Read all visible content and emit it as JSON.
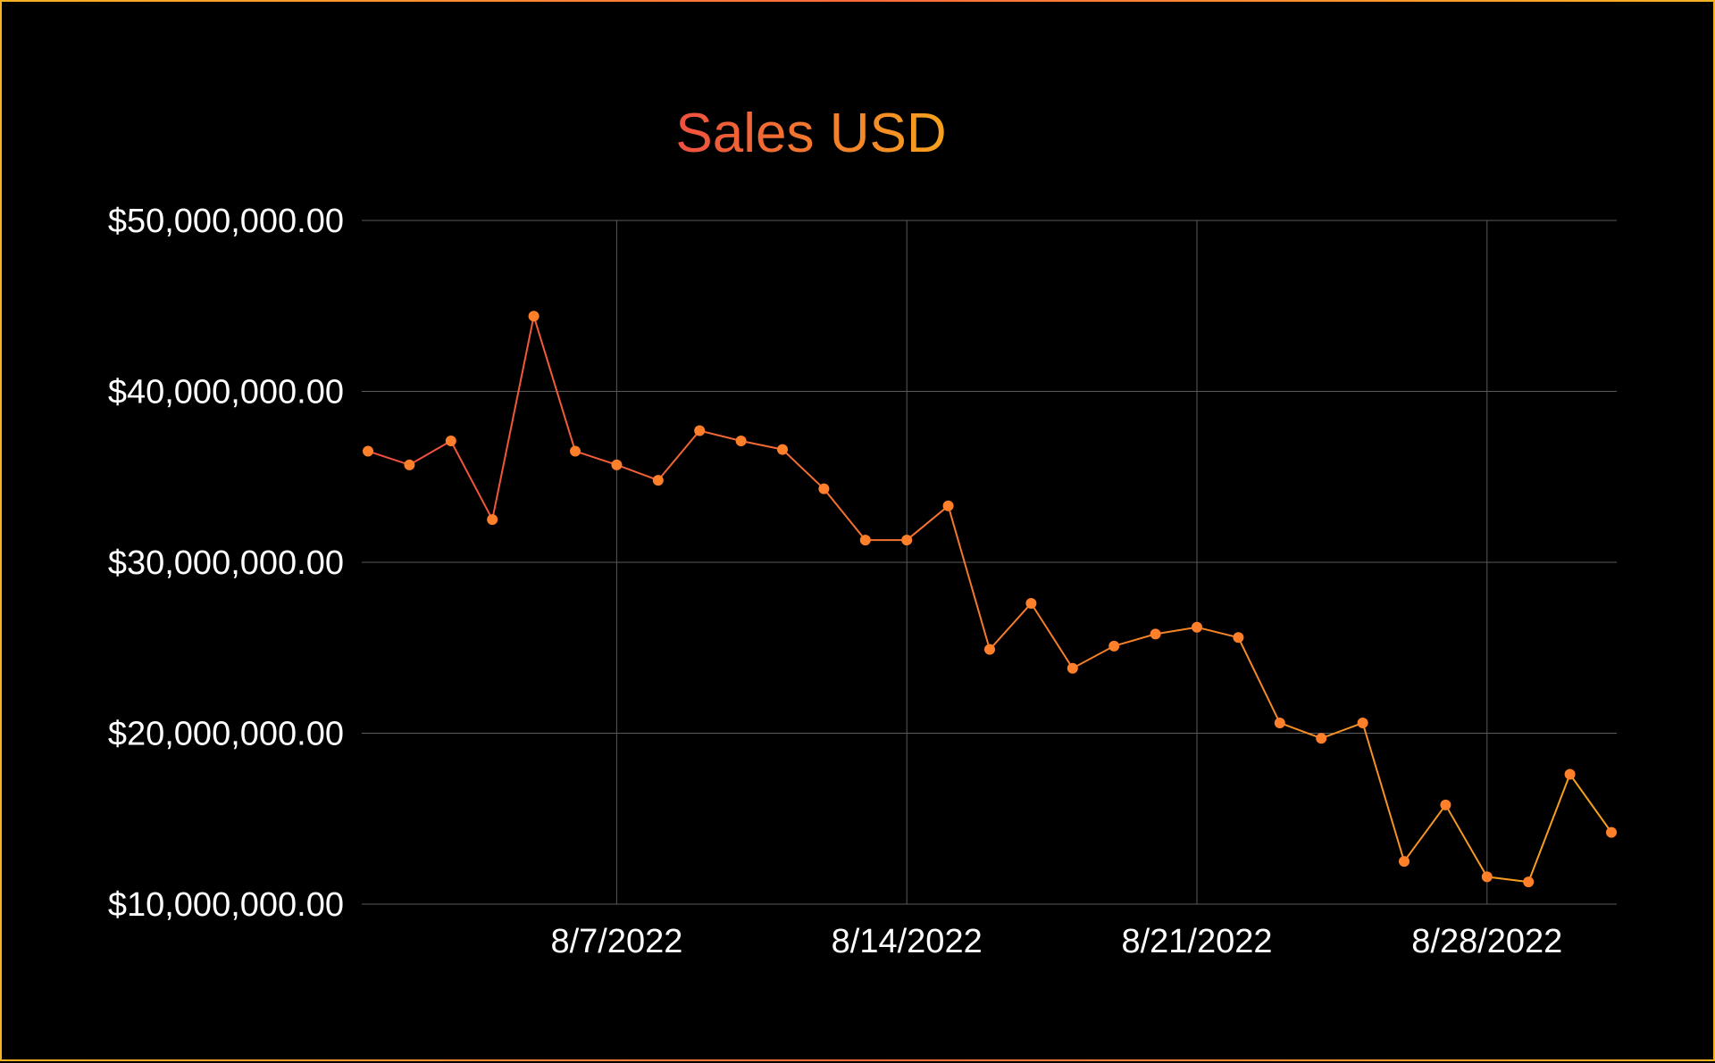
{
  "chart_data": {
    "type": "line",
    "title": "Sales USD",
    "xlabel": "",
    "ylabel": "",
    "ylim": [
      10000000,
      50000000
    ],
    "y_ticks": [
      "$50,000,000.00",
      "$40,000,000.00",
      "$30,000,000.00",
      "$20,000,000.00",
      "$10,000,000.00"
    ],
    "x_ticks": [
      "8/7/2022",
      "8/14/2022",
      "8/21/2022",
      "8/28/2022"
    ],
    "x_tick_values": [
      "2022-08-07",
      "2022-08-14",
      "2022-08-21",
      "2022-08-28"
    ],
    "grid": true,
    "colors": {
      "start": "#ef4f3f",
      "end": "#f6a21d",
      "marker": "#ff7f2a",
      "grid": "#5a5a5a",
      "text": "#ffffff"
    },
    "series": [
      {
        "x": [
          "2022-08-01",
          "2022-08-02",
          "2022-08-03",
          "2022-08-04",
          "2022-08-05",
          "2022-08-06",
          "2022-08-07",
          "2022-08-08",
          "2022-08-09",
          "2022-08-10",
          "2022-08-11",
          "2022-08-12",
          "2022-08-13",
          "2022-08-14",
          "2022-08-15",
          "2022-08-16",
          "2022-08-17",
          "2022-08-18",
          "2022-08-19",
          "2022-08-20",
          "2022-08-21",
          "2022-08-22",
          "2022-08-23",
          "2022-08-24",
          "2022-08-25",
          "2022-08-26",
          "2022-08-27",
          "2022-08-28",
          "2022-08-29",
          "2022-08-30",
          "2022-08-31"
        ],
        "values": [
          36500000,
          35700000,
          37100000,
          32500000,
          44400000,
          36500000,
          35700000,
          34800000,
          37700000,
          37100000,
          36600000,
          34300000,
          31300000,
          31300000,
          33300000,
          24900000,
          27600000,
          23800000,
          25100000,
          25800000,
          26200000,
          25600000,
          20600000,
          19700000,
          20600000,
          12500000,
          15800000,
          11600000,
          11300000,
          17600000,
          14200000
        ]
      }
    ]
  }
}
